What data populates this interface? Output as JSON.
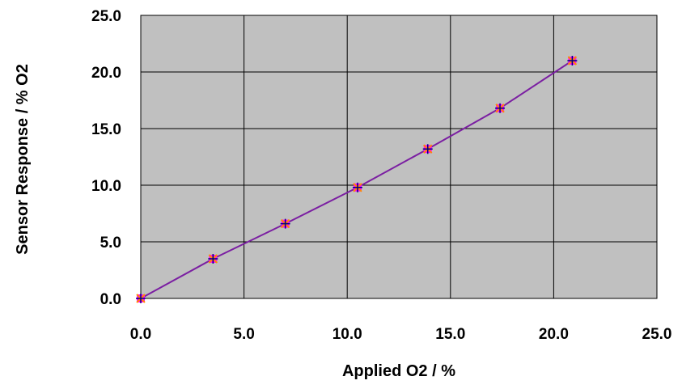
{
  "chart_data": {
    "type": "line",
    "title": "",
    "xlabel": "Applied O2 / %",
    "ylabel": "Sensor Response / % O2",
    "xlim": [
      0,
      25
    ],
    "ylim": [
      0,
      25
    ],
    "x_ticks": [
      0,
      5,
      10,
      15,
      20,
      25
    ],
    "y_ticks": [
      0,
      5,
      10,
      15,
      20,
      25
    ],
    "x_tick_labels": [
      "0.0",
      "5.0",
      "10.0",
      "15.0",
      "20.0",
      "25.0"
    ],
    "y_tick_labels": [
      "0.0",
      "5.0",
      "10.0",
      "15.0",
      "20.0",
      "25.0"
    ],
    "grid": true,
    "legend": "none",
    "series": [
      {
        "x": [
          0,
          3.5,
          7.0,
          10.5,
          13.9,
          17.4,
          20.9
        ],
        "y": [
          0.0,
          3.5,
          6.6,
          9.8,
          13.2,
          16.8,
          21.0
        ],
        "line_color": "#7b1fa2",
        "marker_colors": [
          "#ff00ff",
          "#ff8c00",
          "#000080"
        ]
      }
    ],
    "colors": {
      "plot_background": "#c0c0c0",
      "grid": "#000000",
      "line": "#7b1fa2"
    }
  }
}
